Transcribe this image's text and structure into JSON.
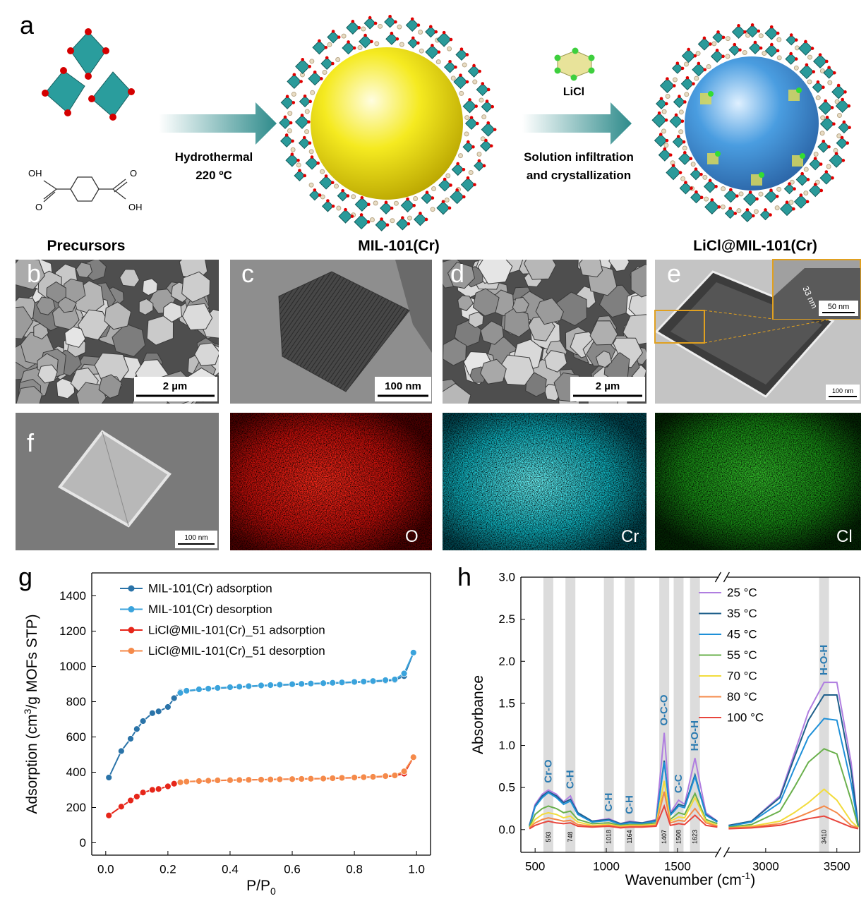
{
  "figure": {
    "panel_a": {
      "label": "a",
      "arrow1": [
        "Hydrothermal",
        "220 ºC"
      ],
      "reagent": "LiCl",
      "arrow2": [
        "Solution infiltration",
        "and crystallization"
      ],
      "formula_labels": [
        "OH",
        "O",
        "O",
        "OH"
      ],
      "captions": [
        "Precursors",
        "MIL-101(Cr)",
        "LiCl@MIL-101(Cr)"
      ]
    },
    "images": [
      {
        "label": "b",
        "scale_bar": "2 µm"
      },
      {
        "label": "c",
        "scale_bar": "100 nm"
      },
      {
        "label": "d",
        "scale_bar": "2 µm"
      },
      {
        "label": "e",
        "scale_bar": "100 nm",
        "inset_scale_bar": "50 nm",
        "inset_measure": "33 nm"
      },
      {
        "label": "f",
        "scale_bar": "100 nm"
      },
      {
        "element": "O"
      },
      {
        "element": "Cr"
      },
      {
        "element": "Cl"
      }
    ],
    "chart_labels": [
      "g",
      "h"
    ]
  },
  "chart_data": [
    {
      "type": "line",
      "y_label": [
        "Adsorption (cm",
        "3",
        "/g MOFs STP)"
      ],
      "x_label": [
        "P/P",
        "0"
      ],
      "xlim": [
        -0.045,
        1.045
      ],
      "ylim": [
        -70,
        1530
      ],
      "xticks": [
        {
          "value": 0,
          "label": "0.0"
        },
        0.2,
        0.4,
        0.6,
        0.8,
        {
          "value": 1,
          "label": "1.0"
        }
      ],
      "yticks": [
        0,
        200,
        400,
        600,
        800,
        1000,
        1200,
        1400
      ],
      "legend": "upper left",
      "markers": true,
      "series": [
        {
          "name": "MIL-101(Cr) adsorption",
          "color": "#2a73a8",
          "x": [
            0.01,
            0.05,
            0.08,
            0.1,
            0.12,
            0.15,
            0.17,
            0.2,
            0.22,
            0.24,
            0.26,
            0.3,
            0.33,
            0.36,
            0.4,
            0.43,
            0.46,
            0.5,
            0.53,
            0.56,
            0.6,
            0.63,
            0.66,
            0.7,
            0.73,
            0.76,
            0.8,
            0.83,
            0.86,
            0.9,
            0.93,
            0.96,
            0.99
          ],
          "values": [
            370,
            520,
            590,
            645,
            690,
            735,
            745,
            770,
            820,
            855,
            860,
            868,
            872,
            876,
            880,
            883,
            886,
            890,
            892,
            894,
            897,
            899,
            901,
            903,
            905,
            907,
            910,
            912,
            914,
            918,
            922,
            945,
            1078
          ]
        },
        {
          "name": "MIL-101(Cr) desorption",
          "color": "#3aa3dc",
          "x": [
            0.99,
            0.96,
            0.93,
            0.9,
            0.86,
            0.83,
            0.8,
            0.76,
            0.73,
            0.7,
            0.66,
            0.63,
            0.6,
            0.56,
            0.53,
            0.5,
            0.46,
            0.43,
            0.4,
            0.36,
            0.33,
            0.3,
            0.26,
            0.24
          ],
          "values": [
            1078,
            960,
            926,
            922,
            917,
            914,
            912,
            909,
            907,
            905,
            903,
            901,
            899,
            896,
            894,
            892,
            888,
            885,
            882,
            878,
            874,
            870,
            862,
            850
          ]
        },
        {
          "name": "LiCl@MIL-101(Cr)_51 adsorption",
          "color": "#e6261a",
          "x": [
            0.01,
            0.05,
            0.08,
            0.1,
            0.12,
            0.15,
            0.17,
            0.2,
            0.22,
            0.24,
            0.26,
            0.3,
            0.33,
            0.36,
            0.4,
            0.43,
            0.46,
            0.5,
            0.53,
            0.56,
            0.6,
            0.63,
            0.66,
            0.7,
            0.73,
            0.76,
            0.8,
            0.83,
            0.86,
            0.9,
            0.93,
            0.96,
            0.99
          ],
          "values": [
            155,
            205,
            240,
            262,
            285,
            300,
            305,
            320,
            335,
            345,
            347,
            349,
            351,
            353,
            355,
            356,
            357,
            358,
            359,
            360,
            361,
            362,
            363,
            364,
            365,
            367,
            369,
            371,
            373,
            376,
            380,
            392,
            485
          ]
        },
        {
          "name": "LiCl@MIL-101(Cr)_51 desorption",
          "color": "#f58a4a",
          "x": [
            0.99,
            0.96,
            0.93,
            0.9,
            0.86,
            0.83,
            0.8,
            0.76,
            0.73,
            0.7,
            0.66,
            0.63,
            0.6,
            0.56,
            0.53,
            0.5,
            0.46,
            0.43,
            0.4,
            0.36,
            0.33,
            0.3,
            0.26,
            0.24
          ],
          "values": [
            485,
            405,
            382,
            378,
            374,
            372,
            370,
            368,
            366,
            364,
            363,
            362,
            361,
            360,
            359,
            358,
            357,
            356,
            355,
            354,
            352,
            350,
            347,
            343
          ]
        }
      ]
    },
    {
      "type": "line",
      "y_label": "Absorbance",
      "x_label": [
        "Wavenumber (cm",
        "-1",
        ")"
      ],
      "xlim": [
        400,
        3660
      ],
      "x_break": [
        1790,
        2730
      ],
      "ylim": [
        -0.27,
        3.0
      ],
      "xticks": [
        500,
        1000,
        1500,
        3000,
        3500
      ],
      "yticks": [
        {
          "value": 0,
          "label": "0.0"
        },
        0.5,
        {
          "value": 1,
          "label": "1.0"
        },
        1.5,
        {
          "value": 2,
          "label": "2.0"
        },
        2.5,
        {
          "value": 3,
          "label": "3.0"
        }
      ],
      "legend": "upper right",
      "band_color": "#dcdcdc",
      "bands": [
        {
          "value": 593,
          "label": "Cr-O"
        },
        {
          "value": 748,
          "label": "C-H"
        },
        {
          "value": 1018,
          "label": "C-H"
        },
        {
          "value": 1164,
          "label": "C-H"
        },
        {
          "value": 1407,
          "label": "O-C-O"
        },
        {
          "value": 1508,
          "label": "C-C"
        },
        {
          "value": 1623,
          "label": "H-O-H"
        },
        {
          "value": 3410,
          "label": "H-O-H"
        }
      ],
      "x": [
        460,
        500,
        550,
        593,
        650,
        700,
        748,
        800,
        900,
        1018,
        1100,
        1164,
        1250,
        1350,
        1407,
        1450,
        1508,
        1550,
        1623,
        1700,
        1780,
        2740,
        2900,
        3100,
        3200,
        3300,
        3410,
        3500,
        3600,
        3650
      ],
      "series": [
        {
          "name": "25 °C",
          "color": "#b07ee0",
          "values": [
            0.05,
            0.3,
            0.42,
            0.47,
            0.42,
            0.33,
            0.4,
            0.2,
            0.1,
            0.13,
            0.07,
            0.1,
            0.08,
            0.12,
            1.15,
            0.2,
            0.35,
            0.3,
            0.85,
            0.2,
            0.1,
            0.05,
            0.1,
            0.4,
            0.9,
            1.4,
            1.75,
            1.75,
            0.8,
            0.05
          ]
        },
        {
          "name": "35 °C",
          "color": "#1f5f8b",
          "values": [
            0.05,
            0.28,
            0.4,
            0.45,
            0.4,
            0.32,
            0.36,
            0.2,
            0.1,
            0.12,
            0.07,
            0.09,
            0.08,
            0.11,
            0.82,
            0.18,
            0.3,
            0.28,
            0.65,
            0.18,
            0.1,
            0.05,
            0.1,
            0.38,
            0.85,
            1.3,
            1.6,
            1.6,
            0.7,
            0.05
          ]
        },
        {
          "name": "45 °C",
          "color": "#1e90d8",
          "values": [
            0.04,
            0.27,
            0.38,
            0.44,
            0.38,
            0.3,
            0.34,
            0.18,
            0.09,
            0.11,
            0.06,
            0.08,
            0.07,
            0.1,
            0.8,
            0.17,
            0.28,
            0.26,
            0.63,
            0.17,
            0.09,
            0.04,
            0.09,
            0.32,
            0.72,
            1.1,
            1.32,
            1.3,
            0.55,
            0.04
          ]
        },
        {
          "name": "55 °C",
          "color": "#6ab04c",
          "values": [
            0.03,
            0.18,
            0.25,
            0.28,
            0.25,
            0.2,
            0.22,
            0.12,
            0.07,
            0.08,
            0.05,
            0.06,
            0.06,
            0.08,
            0.45,
            0.12,
            0.2,
            0.18,
            0.43,
            0.12,
            0.07,
            0.03,
            0.06,
            0.22,
            0.5,
            0.8,
            0.96,
            0.9,
            0.35,
            0.03
          ]
        },
        {
          "name": "70 °C",
          "color": "#f2dc3c",
          "values": [
            0.02,
            0.12,
            0.18,
            0.2,
            0.18,
            0.14,
            0.16,
            0.09,
            0.05,
            0.06,
            0.04,
            0.05,
            0.05,
            0.06,
            0.58,
            0.1,
            0.15,
            0.14,
            0.38,
            0.1,
            0.05,
            0.02,
            0.04,
            0.1,
            0.2,
            0.32,
            0.48,
            0.35,
            0.1,
            0.02
          ]
        },
        {
          "name": "80 °C",
          "color": "#f58a4a",
          "values": [
            0.02,
            0.08,
            0.12,
            0.14,
            0.12,
            0.1,
            0.11,
            0.06,
            0.04,
            0.05,
            0.03,
            0.04,
            0.04,
            0.05,
            0.45,
            0.08,
            0.11,
            0.1,
            0.25,
            0.08,
            0.04,
            0.02,
            0.03,
            0.07,
            0.13,
            0.2,
            0.28,
            0.2,
            0.05,
            0.02
          ]
        },
        {
          "name": "100 °C",
          "color": "#e8453c",
          "values": [
            0.01,
            0.05,
            0.08,
            0.1,
            0.08,
            0.07,
            0.08,
            0.04,
            0.03,
            0.04,
            0.02,
            0.03,
            0.03,
            0.04,
            0.28,
            0.05,
            0.07,
            0.06,
            0.17,
            0.05,
            0.03,
            0.01,
            0.02,
            0.05,
            0.09,
            0.13,
            0.16,
            0.1,
            0.03,
            0.01
          ]
        }
      ]
    }
  ]
}
